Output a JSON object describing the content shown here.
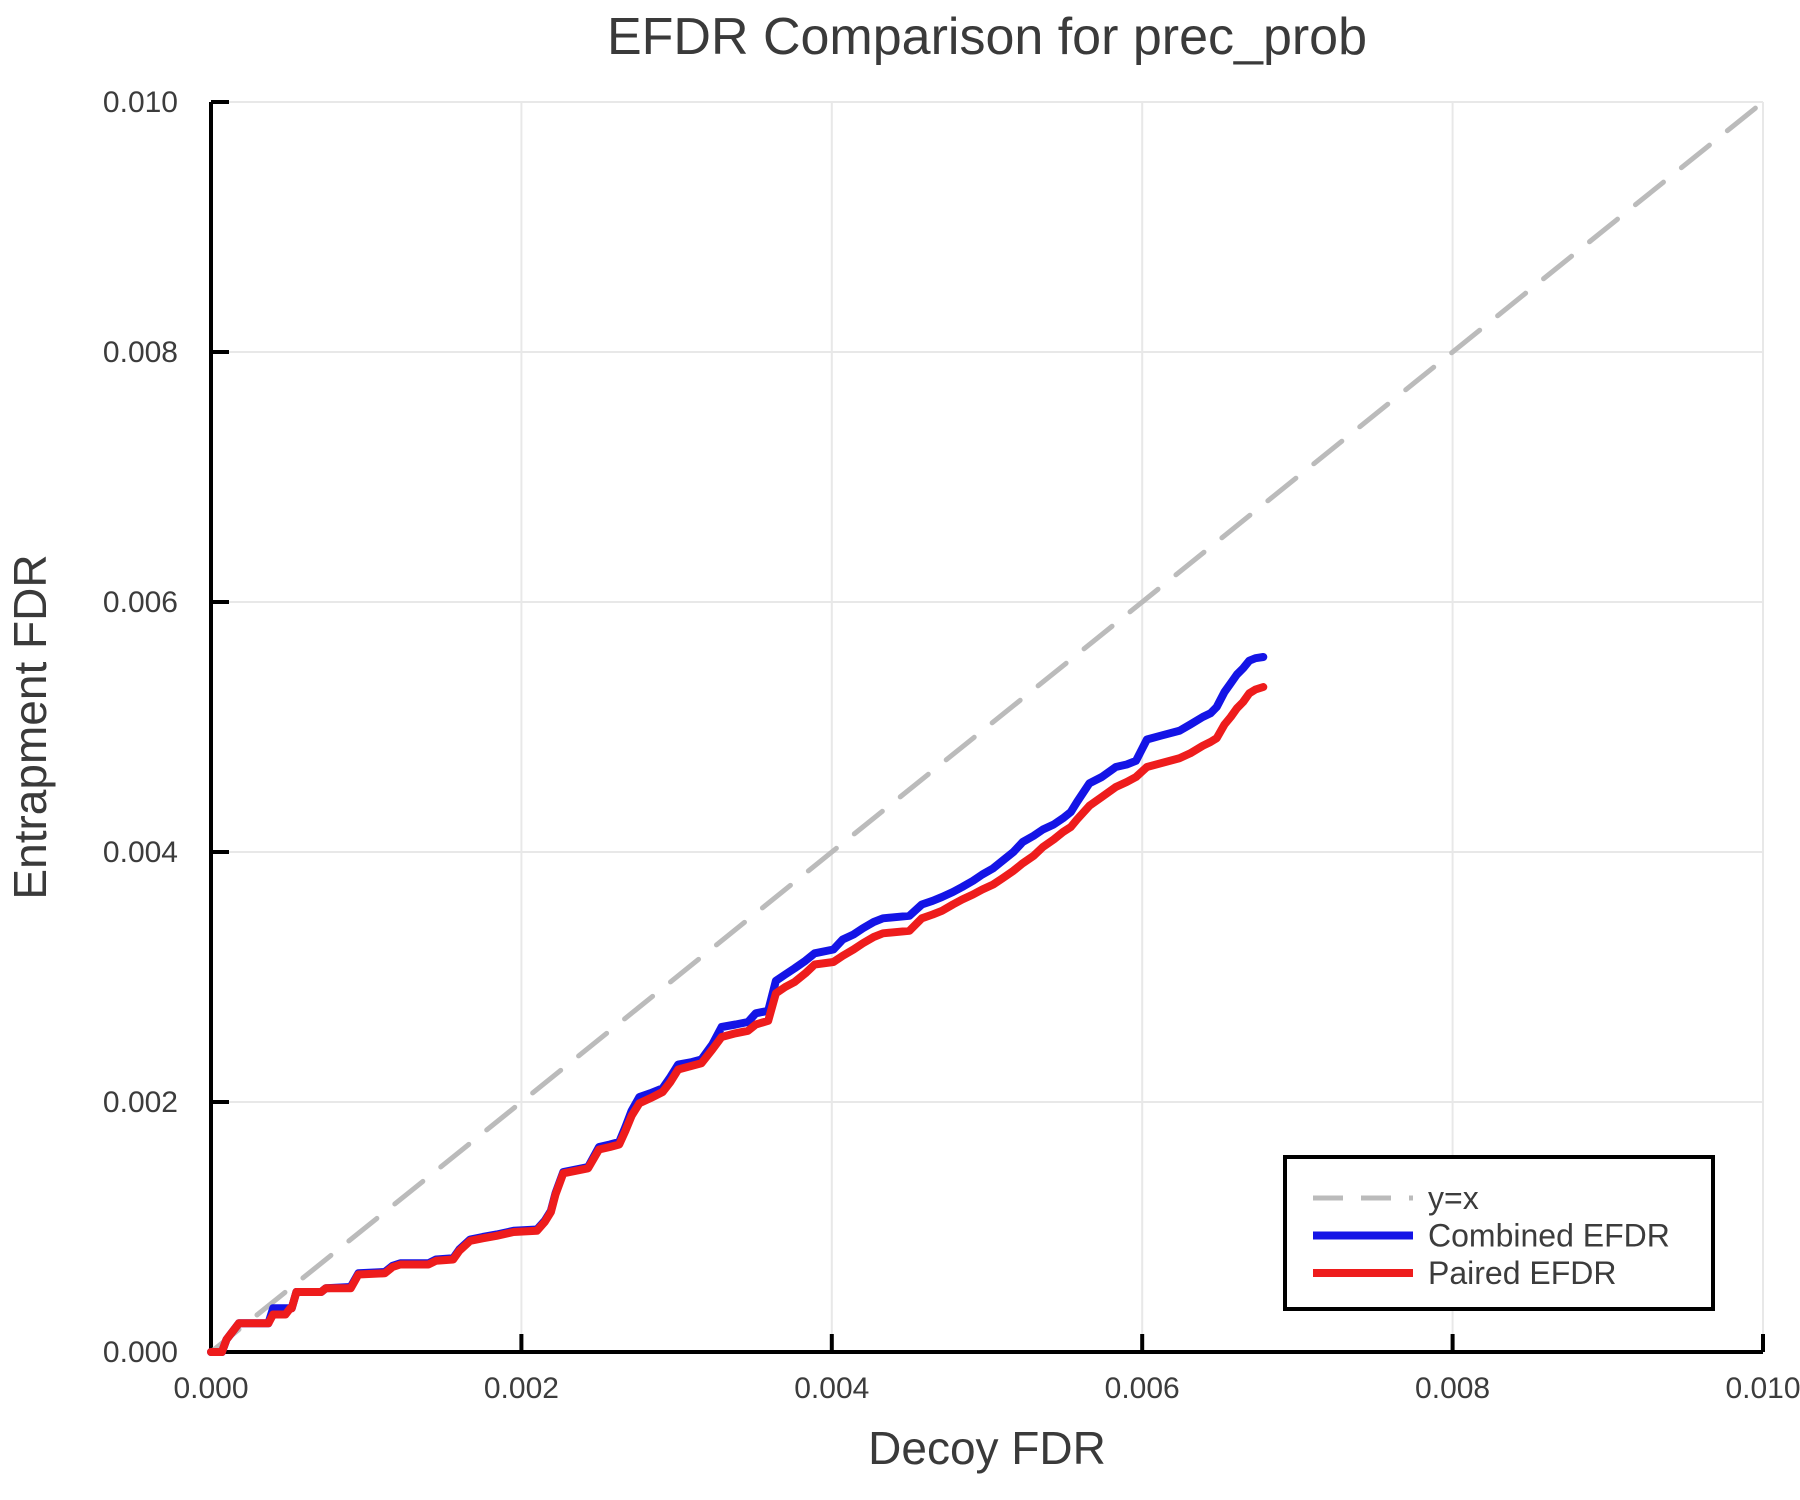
{
  "chart_data": {
    "type": "line",
    "title": "EFDR Comparison for prec_prob",
    "xlabel": "Decoy FDR",
    "ylabel": "Entrapment FDR",
    "xlim": [
      0.0,
      0.01
    ],
    "ylim": [
      0.0,
      0.01
    ],
    "xticks": [
      0.0,
      0.002,
      0.004,
      0.006,
      0.008,
      0.01
    ],
    "yticks": [
      0.0,
      0.002,
      0.004,
      0.006,
      0.008,
      0.01
    ],
    "tick_decimals": 3,
    "grid": true,
    "legend_position": "bottom-right",
    "colors": {
      "reference": "#bbbbbb",
      "combined": "#1414e6",
      "paired": "#ee1c1c",
      "gridline": "#e8e8e8",
      "axis": "#000000",
      "text": "#3a3a3a",
      "background": "#ffffff"
    },
    "series": [
      {
        "name": "y=x",
        "color": "#bbbbbb",
        "dashed": true,
        "width": 5,
        "points": [
          [
            0.0,
            0.0
          ],
          [
            0.01,
            0.01
          ]
        ]
      },
      {
        "name": "Combined EFDR",
        "color": "#1414e6",
        "dashed": false,
        "width": 8,
        "points": [
          [
            0.0,
            0.0
          ],
          [
            7e-05,
            0.0
          ],
          [
            0.0001,
            0.0001
          ],
          [
            0.00018,
            0.00023
          ],
          [
            0.00037,
            0.00023
          ],
          [
            0.0004,
            0.00035
          ],
          [
            0.00052,
            0.00035
          ],
          [
            0.00055,
            0.00048
          ],
          [
            0.00071,
            0.00048
          ],
          [
            0.00074,
            0.00051
          ],
          [
            0.0009,
            0.00052
          ],
          [
            0.00095,
            0.00063
          ],
          [
            0.00112,
            0.00064
          ],
          [
            0.00117,
            0.00069
          ],
          [
            0.00122,
            0.00071
          ],
          [
            0.0014,
            0.00071
          ],
          [
            0.00145,
            0.00074
          ],
          [
            0.00156,
            0.00075
          ],
          [
            0.0016,
            0.00082
          ],
          [
            0.00167,
            0.0009
          ],
          [
            0.00175,
            0.00092
          ],
          [
            0.00184,
            0.00094
          ],
          [
            0.00195,
            0.00097
          ],
          [
            0.0021,
            0.00098
          ],
          [
            0.00215,
            0.00105
          ],
          [
            0.00219,
            0.00113
          ],
          [
            0.00222,
            0.00127
          ],
          [
            0.00227,
            0.00144
          ],
          [
            0.00235,
            0.00146
          ],
          [
            0.00243,
            0.00148
          ],
          [
            0.0025,
            0.00164
          ],
          [
            0.00257,
            0.00166
          ],
          [
            0.00263,
            0.00168
          ],
          [
            0.00267,
            0.0018
          ],
          [
            0.00271,
            0.00193
          ],
          [
            0.00276,
            0.00204
          ],
          [
            0.00283,
            0.00207
          ],
          [
            0.00291,
            0.00211
          ],
          [
            0.00296,
            0.0022
          ],
          [
            0.00301,
            0.0023
          ],
          [
            0.0031,
            0.00232
          ],
          [
            0.00316,
            0.00234
          ],
          [
            0.00323,
            0.00246
          ],
          [
            0.00329,
            0.0026
          ],
          [
            0.00338,
            0.00262
          ],
          [
            0.00346,
            0.00264
          ],
          [
            0.00351,
            0.00271
          ],
          [
            0.00359,
            0.00273
          ],
          [
            0.00364,
            0.00297
          ],
          [
            0.0037,
            0.00302
          ],
          [
            0.00376,
            0.00307
          ],
          [
            0.00383,
            0.00313
          ],
          [
            0.00389,
            0.00319
          ],
          [
            0.00401,
            0.00322
          ],
          [
            0.00407,
            0.0033
          ],
          [
            0.00414,
            0.00334
          ],
          [
            0.0042,
            0.00339
          ],
          [
            0.00427,
            0.00344
          ],
          [
            0.00433,
            0.00347
          ],
          [
            0.0045,
            0.00349
          ],
          [
            0.00458,
            0.00358
          ],
          [
            0.00465,
            0.00361
          ],
          [
            0.00471,
            0.00364
          ],
          [
            0.00478,
            0.00368
          ],
          [
            0.00484,
            0.00372
          ],
          [
            0.00491,
            0.00377
          ],
          [
            0.00497,
            0.00382
          ],
          [
            0.00504,
            0.00387
          ],
          [
            0.0051,
            0.00393
          ],
          [
            0.00517,
            0.004
          ],
          [
            0.00523,
            0.00408
          ],
          [
            0.0053,
            0.00413
          ],
          [
            0.00536,
            0.00418
          ],
          [
            0.00543,
            0.00422
          ],
          [
            0.00549,
            0.00427
          ],
          [
            0.00554,
            0.00432
          ],
          [
            0.00558,
            0.0044
          ],
          [
            0.00566,
            0.00455
          ],
          [
            0.00574,
            0.0046
          ],
          [
            0.00583,
            0.00468
          ],
          [
            0.0059,
            0.0047
          ],
          [
            0.00596,
            0.00473
          ],
          [
            0.00603,
            0.0049
          ],
          [
            0.00612,
            0.00493
          ],
          [
            0.00624,
            0.00497
          ],
          [
            0.00631,
            0.00502
          ],
          [
            0.00639,
            0.00508
          ],
          [
            0.00644,
            0.00511
          ],
          [
            0.00648,
            0.00516
          ],
          [
            0.00653,
            0.00528
          ],
          [
            0.00657,
            0.00535
          ],
          [
            0.00661,
            0.00542
          ],
          [
            0.00665,
            0.00547
          ],
          [
            0.00669,
            0.00553
          ],
          [
            0.00673,
            0.00555
          ],
          [
            0.00678,
            0.00556
          ]
        ]
      },
      {
        "name": "Paired EFDR",
        "color": "#ee1c1c",
        "dashed": false,
        "width": 8,
        "points": [
          [
            0.0,
            0.0
          ],
          [
            7e-05,
            0.0
          ],
          [
            0.0001,
            0.0001
          ],
          [
            0.00018,
            0.00023
          ],
          [
            0.00037,
            0.00023
          ],
          [
            0.0004,
            0.0003
          ],
          [
            0.00048,
            0.0003
          ],
          [
            0.00051,
            0.00035
          ],
          [
            0.00052,
            0.00035
          ],
          [
            0.00055,
            0.00048
          ],
          [
            0.00071,
            0.00048
          ],
          [
            0.00074,
            0.00051
          ],
          [
            0.0009,
            0.00051
          ],
          [
            0.00095,
            0.00062
          ],
          [
            0.00112,
            0.00063
          ],
          [
            0.00117,
            0.00068
          ],
          [
            0.00122,
            0.0007
          ],
          [
            0.0014,
            0.0007
          ],
          [
            0.00145,
            0.00073
          ],
          [
            0.00156,
            0.00074
          ],
          [
            0.0016,
            0.00081
          ],
          [
            0.00167,
            0.00089
          ],
          [
            0.00175,
            0.00091
          ],
          [
            0.00184,
            0.00093
          ],
          [
            0.00195,
            0.00096
          ],
          [
            0.0021,
            0.00097
          ],
          [
            0.00215,
            0.00104
          ],
          [
            0.00219,
            0.00112
          ],
          [
            0.00222,
            0.00126
          ],
          [
            0.00227,
            0.00143
          ],
          [
            0.00235,
            0.00145
          ],
          [
            0.00243,
            0.00147
          ],
          [
            0.0025,
            0.00162
          ],
          [
            0.00257,
            0.00164
          ],
          [
            0.00263,
            0.00166
          ],
          [
            0.00267,
            0.00177
          ],
          [
            0.00271,
            0.00189
          ],
          [
            0.00276,
            0.00199
          ],
          [
            0.00283,
            0.00203
          ],
          [
            0.00291,
            0.00208
          ],
          [
            0.00296,
            0.00216
          ],
          [
            0.00301,
            0.00226
          ],
          [
            0.0031,
            0.00229
          ],
          [
            0.00316,
            0.00231
          ],
          [
            0.00323,
            0.00242
          ],
          [
            0.00329,
            0.00252
          ],
          [
            0.00338,
            0.00255
          ],
          [
            0.00346,
            0.00257
          ],
          [
            0.00351,
            0.00262
          ],
          [
            0.00359,
            0.00265
          ],
          [
            0.00364,
            0.00287
          ],
          [
            0.0037,
            0.00292
          ],
          [
            0.00376,
            0.00296
          ],
          [
            0.00383,
            0.00303
          ],
          [
            0.00389,
            0.0031
          ],
          [
            0.00401,
            0.00312
          ],
          [
            0.00407,
            0.00317
          ],
          [
            0.00414,
            0.00322
          ],
          [
            0.0042,
            0.00327
          ],
          [
            0.00427,
            0.00332
          ],
          [
            0.00433,
            0.00335
          ],
          [
            0.0045,
            0.00337
          ],
          [
            0.00458,
            0.00347
          ],
          [
            0.00465,
            0.0035
          ],
          [
            0.00471,
            0.00353
          ],
          [
            0.00478,
            0.00358
          ],
          [
            0.00484,
            0.00362
          ],
          [
            0.00491,
            0.00366
          ],
          [
            0.00497,
            0.0037
          ],
          [
            0.00504,
            0.00374
          ],
          [
            0.0051,
            0.00379
          ],
          [
            0.00517,
            0.00385
          ],
          [
            0.00523,
            0.00391
          ],
          [
            0.0053,
            0.00397
          ],
          [
            0.00536,
            0.00404
          ],
          [
            0.00543,
            0.0041
          ],
          [
            0.00549,
            0.00416
          ],
          [
            0.00554,
            0.0042
          ],
          [
            0.00558,
            0.00426
          ],
          [
            0.00566,
            0.00437
          ],
          [
            0.00574,
            0.00444
          ],
          [
            0.00583,
            0.00452
          ],
          [
            0.0059,
            0.00456
          ],
          [
            0.00596,
            0.0046
          ],
          [
            0.00603,
            0.00468
          ],
          [
            0.00612,
            0.00471
          ],
          [
            0.00624,
            0.00475
          ],
          [
            0.00631,
            0.00479
          ],
          [
            0.00639,
            0.00485
          ],
          [
            0.00644,
            0.00488
          ],
          [
            0.00648,
            0.00491
          ],
          [
            0.00653,
            0.00502
          ],
          [
            0.00657,
            0.00508
          ],
          [
            0.00661,
            0.00515
          ],
          [
            0.00665,
            0.0052
          ],
          [
            0.00669,
            0.00527
          ],
          [
            0.00673,
            0.0053
          ],
          [
            0.00678,
            0.00532
          ]
        ]
      }
    ],
    "legend": {
      "entries": [
        "y=x",
        "Combined EFDR",
        "Paired EFDR"
      ]
    }
  }
}
